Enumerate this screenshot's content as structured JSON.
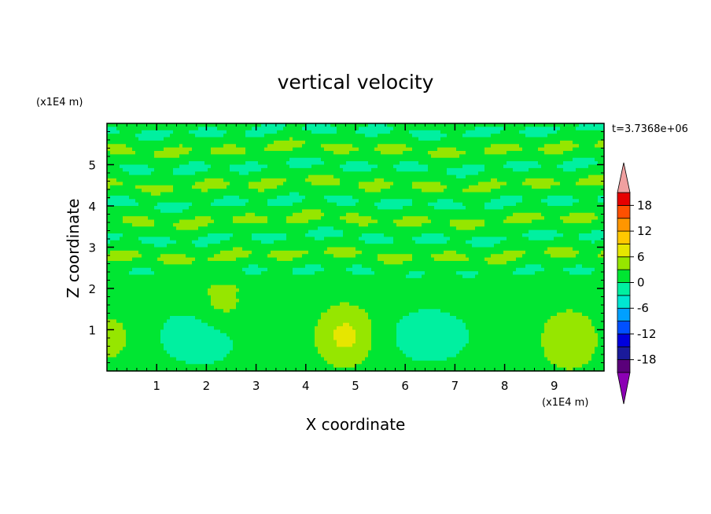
{
  "chart_data": {
    "type": "heatmap",
    "title": "vertical velocity",
    "xlabel": "X coordinate",
    "ylabel": "Z coordinate",
    "x_unit": "(x1E4 m)",
    "y_unit": "(x1E4 m)",
    "time_label": "t=3.7368e+06",
    "xlim": [
      0,
      10
    ],
    "ylim": [
      0,
      6
    ],
    "x_ticks": [
      1,
      2,
      3,
      4,
      5,
      6,
      7,
      8,
      9
    ],
    "y_ticks": [
      1,
      2,
      3,
      4,
      5
    ],
    "colorbar": {
      "levels": [
        -21,
        -18,
        -15,
        -12,
        -9,
        -6,
        -3,
        0,
        3,
        6,
        9,
        12,
        15,
        18,
        21
      ],
      "tick_labels": [
        "18",
        "12",
        "6",
        "0",
        "-6",
        "-12",
        "-18"
      ],
      "tick_values": [
        18,
        12,
        6,
        0,
        -6,
        -12,
        -18
      ],
      "colors": [
        "#5a007a",
        "#1a1a9a",
        "#0000dc",
        "#0050ff",
        "#00a0ff",
        "#00e6d2",
        "#00f0a0",
        "#00e632",
        "#96e600",
        "#e6e600",
        "#ffc800",
        "#ff9600",
        "#ff5000",
        "#e60000"
      ],
      "over_color": "#f0a0a0",
      "under_color": "#8c00b4"
    },
    "field": {
      "background_value": 1.5,
      "band_bottom": 2.1,
      "features": [
        {
          "type": "updraft",
          "x": 4.8,
          "z": 0.85,
          "amplitude": 5.4
        },
        {
          "type": "updraft",
          "x": 9.3,
          "z": 0.75,
          "amplitude": 4.2
        },
        {
          "type": "updraft",
          "x": 0.05,
          "z": 0.8,
          "amplitude": 2.4
        },
        {
          "type": "updraft",
          "x": 2.3,
          "z": 1.5,
          "amplitude": 3.0
        },
        {
          "type": "downdraft",
          "x": 1.9,
          "z": 0.85,
          "amplitude": -4.0
        },
        {
          "type": "downdraft",
          "x": 6.5,
          "z": 0.85,
          "amplitude": -3.4
        }
      ]
    }
  }
}
